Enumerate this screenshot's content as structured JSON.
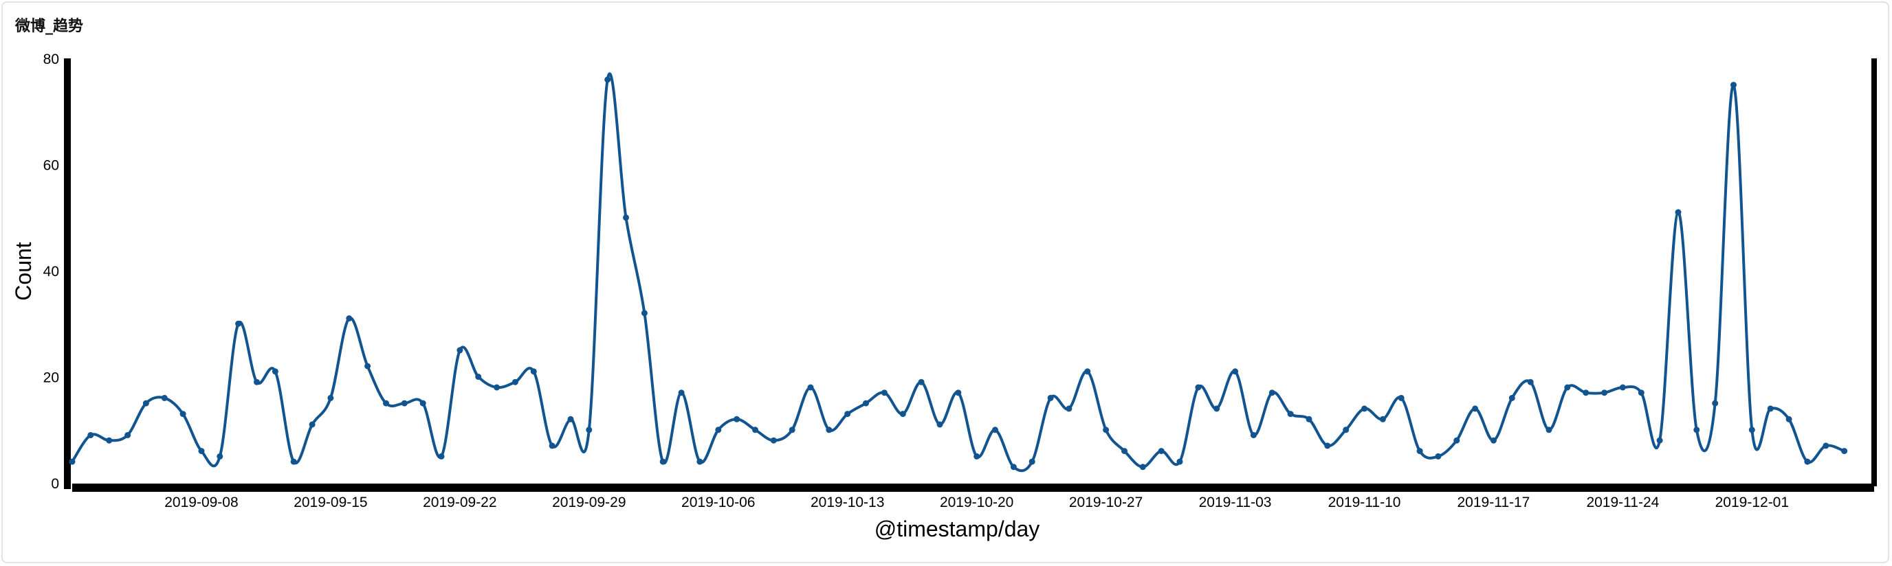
{
  "panel": {
    "title": "微博_趋势"
  },
  "chart_data": {
    "type": "line",
    "title": "微博_趋势",
    "xlabel": "@timestamp/day",
    "ylabel": "Count",
    "ylim": [
      0,
      80
    ],
    "yticks": [
      0,
      20,
      40,
      60,
      80
    ],
    "x_start": "2019-09-01",
    "x_ticks": [
      "2019-09-08",
      "2019-09-15",
      "2019-09-22",
      "2019-09-29",
      "2019-10-06",
      "2019-10-13",
      "2019-10-20",
      "2019-10-27",
      "2019-11-03",
      "2019-11-10",
      "2019-11-17",
      "2019-11-24",
      "2019-12-01"
    ],
    "grid": false,
    "series_color": "#12548f",
    "values": [
      4,
      9,
      8,
      9,
      15,
      16,
      13,
      6,
      5,
      30,
      19,
      21,
      4,
      11,
      16,
      31,
      22,
      15,
      15,
      15,
      5,
      25,
      20,
      18,
      19,
      21,
      7,
      12,
      10,
      76,
      50,
      32,
      4,
      17,
      4,
      10,
      12,
      10,
      8,
      10,
      18,
      10,
      13,
      15,
      17,
      13,
      19,
      11,
      17,
      5,
      10,
      3,
      4,
      16,
      14,
      21,
      10,
      6,
      3,
      6,
      4,
      18,
      14,
      21,
      9,
      17,
      13,
      12,
      7,
      10,
      14,
      12,
      16,
      6,
      5,
      8,
      14,
      8,
      16,
      19,
      10,
      18,
      17,
      17,
      18,
      17,
      8,
      51,
      10,
      15,
      75,
      10,
      14,
      12,
      4,
      7,
      6
    ]
  }
}
